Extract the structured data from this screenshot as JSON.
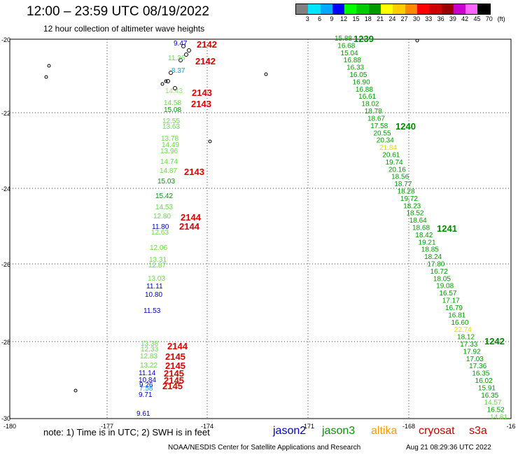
{
  "header": {
    "title": "12:00  –  23:59 UTC 08/19/2022",
    "subtitle": "12 hour collection of altimeter wave heights"
  },
  "colorbar": {
    "colors": [
      "#808080",
      "#00e5ff",
      "#00a8ff",
      "#0000ff",
      "#00ff00",
      "#00cc00",
      "#009900",
      "#ffff00",
      "#ffcc00",
      "#ff8800",
      "#ff0000",
      "#cc0000",
      "#990000",
      "#cc00cc",
      "#ff66ff",
      "#000000"
    ],
    "labels": [
      "3",
      "6",
      "9",
      "12",
      "15",
      "18",
      "21",
      "24",
      "27",
      "30",
      "33",
      "36",
      "39",
      "42",
      "45",
      "70",
      "(ft)"
    ]
  },
  "map": {
    "lon_labels": [
      "-180",
      "-177",
      "-174",
      "-171",
      "-168",
      "-16"
    ],
    "lat_labels": [
      "-20",
      "-22",
      "-24",
      "-26",
      "-28",
      "-30"
    ],
    "colors": {
      "jason2": "#0000cc",
      "jason3": "#009900",
      "altika": "#ff9900",
      "cryosat": "#cc0000",
      "s3a": "#cc0000",
      "light_green": "#66dd44",
      "pale_green": "#88ee66",
      "yellow": "#dddd00",
      "blue_cyan": "#00aaee"
    },
    "pass_labels": [
      {
        "text": "2142",
        "color": "#dd0000",
        "group": "left"
      },
      {
        "text": "2142",
        "color": "#dd0000",
        "group": "left"
      },
      {
        "text": "2143",
        "color": "#dd0000",
        "group": "left"
      },
      {
        "text": "2143",
        "color": "#dd0000",
        "group": "left"
      },
      {
        "text": "2143",
        "color": "#dd0000",
        "group": "left"
      },
      {
        "text": "2144",
        "color": "#dd0000",
        "group": "left"
      },
      {
        "text": "2144",
        "color": "#dd0000",
        "group": "left"
      },
      {
        "text": "2144",
        "color": "#dd0000",
        "group": "left"
      },
      {
        "text": "2145",
        "color": "#dd0000",
        "group": "left"
      },
      {
        "text": "2145",
        "color": "#dd0000",
        "group": "left"
      },
      {
        "text": "2145",
        "color": "#dd0000",
        "group": "left"
      },
      {
        "text": "2145",
        "color": "#dd0000",
        "group": "left"
      },
      {
        "text": "2145",
        "color": "#dd0000",
        "group": "left"
      },
      {
        "text": "1239",
        "color": "#008800",
        "group": "right"
      },
      {
        "text": "1240",
        "color": "#008800",
        "group": "right"
      },
      {
        "text": "1241",
        "color": "#008800",
        "group": "right"
      },
      {
        "text": "1242",
        "color": "#008800",
        "group": "right"
      }
    ],
    "left_track": [
      {
        "v": "9.47",
        "c": "#0000cc"
      },
      {
        "v": "11.36",
        "c": "#66dd44"
      },
      {
        "v": "8.37",
        "c": "#00aaee"
      },
      {
        "v": "14.43",
        "c": "#88ee66"
      },
      {
        "v": "14.58",
        "c": "#66dd44"
      },
      {
        "v": "15.08",
        "c": "#009900"
      },
      {
        "v": "12.55",
        "c": "#66dd44"
      },
      {
        "v": "13.63",
        "c": "#66dd44"
      },
      {
        "v": "13.78",
        "c": "#66dd44"
      },
      {
        "v": "14.49",
        "c": "#66dd44"
      },
      {
        "v": "13.96",
        "c": "#66dd44"
      },
      {
        "v": "14.74",
        "c": "#66dd44"
      },
      {
        "v": "14.87",
        "c": "#66dd44"
      },
      {
        "v": "15.03",
        "c": "#009900"
      },
      {
        "v": "15.42",
        "c": "#009900"
      },
      {
        "v": "14.53",
        "c": "#66dd44"
      },
      {
        "v": "12.80",
        "c": "#66dd44"
      },
      {
        "v": "11.80",
        "c": "#0000cc"
      },
      {
        "v": "12.63",
        "c": "#66dd44"
      },
      {
        "v": "12.06",
        "c": "#66dd44"
      },
      {
        "v": "13.31",
        "c": "#66dd44"
      },
      {
        "v": "12.87",
        "c": "#66dd44"
      },
      {
        "v": "13.03",
        "c": "#66dd44"
      },
      {
        "v": "11.11",
        "c": "#0000cc"
      },
      {
        "v": "10.80",
        "c": "#0000cc"
      },
      {
        "v": "11.53",
        "c": "#0000cc"
      },
      {
        "v": "13.38",
        "c": "#66dd44"
      },
      {
        "v": "12.33",
        "c": "#66dd44"
      },
      {
        "v": "12.83",
        "c": "#66dd44"
      },
      {
        "v": "13.22",
        "c": "#66dd44"
      },
      {
        "v": "11.14",
        "c": "#0000cc"
      },
      {
        "v": "10.84",
        "c": "#0000cc"
      },
      {
        "v": "9.26",
        "c": "#0000cc"
      },
      {
        "v": "7.58",
        "c": "#00aaee"
      },
      {
        "v": "9.71",
        "c": "#0000cc"
      },
      {
        "v": "9.61",
        "c": "#0000cc"
      }
    ],
    "right_track": [
      {
        "v": "15.88",
        "c": "#009900"
      },
      {
        "v": "16.68",
        "c": "#009900"
      },
      {
        "v": "15.04",
        "c": "#009900"
      },
      {
        "v": "16.88",
        "c": "#009900"
      },
      {
        "v": "16.33",
        "c": "#009900"
      },
      {
        "v": "16.05",
        "c": "#009900"
      },
      {
        "v": "16.90",
        "c": "#009900"
      },
      {
        "v": "16.88",
        "c": "#009900"
      },
      {
        "v": "16.61",
        "c": "#009900"
      },
      {
        "v": "18.02",
        "c": "#009900"
      },
      {
        "v": "18.78",
        "c": "#009900"
      },
      {
        "v": "18.67",
        "c": "#009900"
      },
      {
        "v": "17.58",
        "c": "#009900"
      },
      {
        "v": "20.55",
        "c": "#009900"
      },
      {
        "v": "20.34",
        "c": "#009900"
      },
      {
        "v": "21.84",
        "c": "#dddd00"
      },
      {
        "v": "20.61",
        "c": "#009900"
      },
      {
        "v": "19.74",
        "c": "#009900"
      },
      {
        "v": "20.16",
        "c": "#009900"
      },
      {
        "v": "18.56",
        "c": "#009900"
      },
      {
        "v": "18.77",
        "c": "#009900"
      },
      {
        "v": "18.28",
        "c": "#009900"
      },
      {
        "v": "19.72",
        "c": "#009900"
      },
      {
        "v": "18.23",
        "c": "#009900"
      },
      {
        "v": "18.52",
        "c": "#009900"
      },
      {
        "v": "18.64",
        "c": "#009900"
      },
      {
        "v": "18.68",
        "c": "#009900"
      },
      {
        "v": "18.42",
        "c": "#009900"
      },
      {
        "v": "19.21",
        "c": "#009900"
      },
      {
        "v": "18.85",
        "c": "#009900"
      },
      {
        "v": "18.24",
        "c": "#009900"
      },
      {
        "v": "17.80",
        "c": "#009900"
      },
      {
        "v": "16.72",
        "c": "#009900"
      },
      {
        "v": "18.05",
        "c": "#009900"
      },
      {
        "v": "19.08",
        "c": "#009900"
      },
      {
        "v": "16.57",
        "c": "#009900"
      },
      {
        "v": "17.17",
        "c": "#009900"
      },
      {
        "v": "16.79",
        "c": "#009900"
      },
      {
        "v": "16.81",
        "c": "#009900"
      },
      {
        "v": "16.60",
        "c": "#009900"
      },
      {
        "v": "22.74",
        "c": "#dddd00"
      },
      {
        "v": "18.12",
        "c": "#009900"
      },
      {
        "v": "17.33",
        "c": "#009900"
      },
      {
        "v": "17.92",
        "c": "#009900"
      },
      {
        "v": "17.03",
        "c": "#009900"
      },
      {
        "v": "17.36",
        "c": "#009900"
      },
      {
        "v": "16.35",
        "c": "#009900"
      },
      {
        "v": "16.02",
        "c": "#009900"
      },
      {
        "v": "15.91",
        "c": "#009900"
      },
      {
        "v": "16.35",
        "c": "#009900"
      },
      {
        "v": "14.57",
        "c": "#66dd44"
      },
      {
        "v": "16.52",
        "c": "#009900"
      },
      {
        "v": "14.81",
        "c": "#66dd44"
      }
    ]
  },
  "footer": {
    "note": "note:  1) Time is in UTC; 2) SWH is in feet",
    "legend": [
      {
        "label": "jason2",
        "color": "#0000cc"
      },
      {
        "label": "jason3",
        "color": "#009900"
      },
      {
        "label": "altika",
        "color": "#ff9900"
      },
      {
        "label": "cryosat",
        "color": "#cc0000"
      },
      {
        "label": "s3a",
        "color": "#cc0000"
      }
    ],
    "credit": "NOAA/NESDIS Center for Satellite Applications and Research",
    "timestamp": "Aug 21 08:29:36 UTC 2022"
  }
}
